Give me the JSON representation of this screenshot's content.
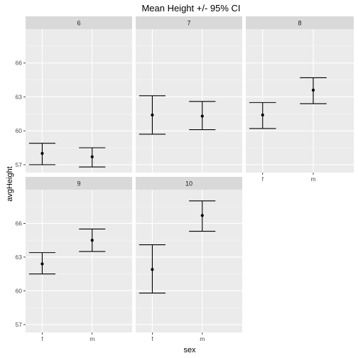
{
  "chart_data": {
    "type": "errorbar",
    "title": "Mean Height +/- 95% CI",
    "xlabel": "sex",
    "ylabel": "avgHeight",
    "categories": [
      "f",
      "m"
    ],
    "ylim": [
      56.3,
      69.0
    ],
    "yticks": [
      57,
      60,
      63,
      66
    ],
    "grid": true,
    "facets": [
      {
        "label": "6",
        "points": [
          {
            "x": "f",
            "mean": 58.0,
            "lower": 57.0,
            "upper": 58.9
          },
          {
            "x": "m",
            "mean": 57.7,
            "lower": 56.8,
            "upper": 58.5
          }
        ]
      },
      {
        "label": "7",
        "points": [
          {
            "x": "f",
            "mean": 61.4,
            "lower": 59.7,
            "upper": 63.1
          },
          {
            "x": "m",
            "mean": 61.3,
            "lower": 60.1,
            "upper": 62.6
          }
        ]
      },
      {
        "label": "8",
        "points": [
          {
            "x": "f",
            "mean": 61.4,
            "lower": 60.2,
            "upper": 62.5
          },
          {
            "x": "m",
            "mean": 63.6,
            "lower": 62.4,
            "upper": 64.7
          }
        ]
      },
      {
        "label": "9",
        "points": [
          {
            "x": "f",
            "mean": 62.4,
            "lower": 61.5,
            "upper": 63.4
          },
          {
            "x": "m",
            "mean": 64.5,
            "lower": 63.5,
            "upper": 65.5
          }
        ]
      },
      {
        "label": "10",
        "points": [
          {
            "x": "f",
            "mean": 61.9,
            "lower": 59.8,
            "upper": 64.1
          },
          {
            "x": "m",
            "mean": 66.7,
            "lower": 65.3,
            "upper": 68.0
          }
        ]
      }
    ]
  }
}
